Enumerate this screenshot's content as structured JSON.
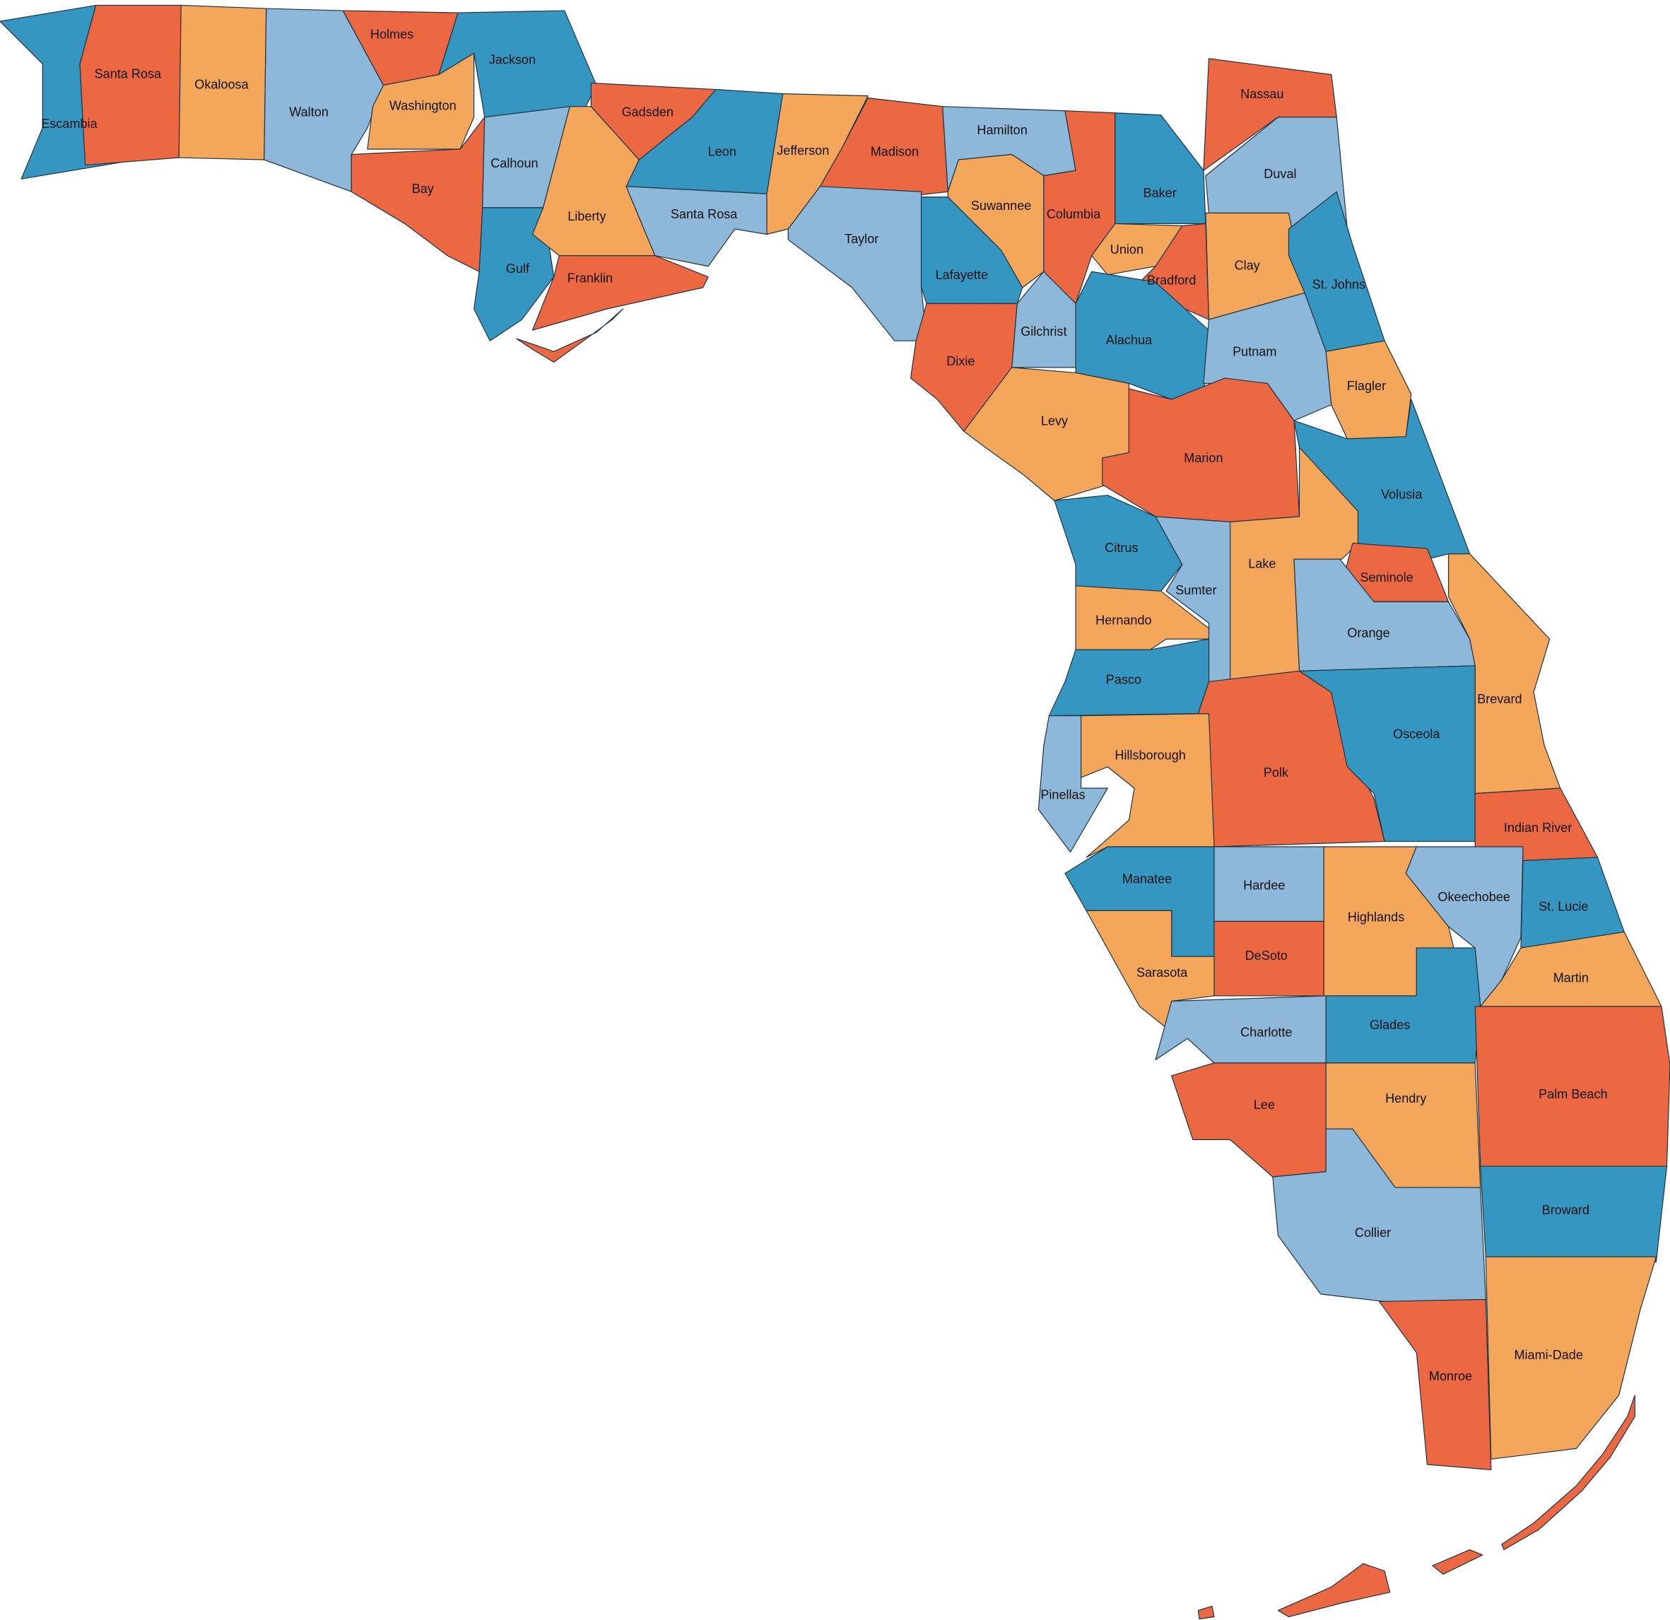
{
  "counties": [
    {
      "name": "Escambia",
      "color": "#3597c1"
    },
    {
      "name": "Santa Rosa",
      "color": "#ec6842"
    },
    {
      "name": "Okaloosa",
      "color": "#f4a65a"
    },
    {
      "name": "Walton",
      "color": "#8db8d9"
    },
    {
      "name": "Holmes",
      "color": "#ec6842"
    },
    {
      "name": "Jackson",
      "color": "#3597c1"
    },
    {
      "name": "Washington",
      "color": "#f4a65a"
    },
    {
      "name": "Bay",
      "color": "#ec6842"
    },
    {
      "name": "Calhoun",
      "color": "#8db8d9"
    },
    {
      "name": "Gulf",
      "color": "#3597c1"
    },
    {
      "name": "Liberty",
      "color": "#f4a65a"
    },
    {
      "name": "Franklin",
      "color": "#ec6842"
    },
    {
      "name": "Gadsden",
      "color": "#ec6842"
    },
    {
      "name": "Leon",
      "color": "#3597c1"
    },
    {
      "name": "Santa Rosa",
      "color": "#8db8d9"
    },
    {
      "name": "Jefferson",
      "color": "#f4a65a"
    },
    {
      "name": "Madison",
      "color": "#ec6842"
    },
    {
      "name": "Taylor",
      "color": "#8db8d9"
    },
    {
      "name": "Hamilton",
      "color": "#8db8d9"
    },
    {
      "name": "Suwannee",
      "color": "#f4a65a"
    },
    {
      "name": "Lafayette",
      "color": "#3597c1"
    },
    {
      "name": "Columbia",
      "color": "#ec6842"
    },
    {
      "name": "Baker",
      "color": "#3597c1"
    },
    {
      "name": "Nassau",
      "color": "#ec6842"
    },
    {
      "name": "Duval",
      "color": "#8db8d9"
    },
    {
      "name": "Union",
      "color": "#f4a65a"
    },
    {
      "name": "Bradford",
      "color": "#ec6842"
    },
    {
      "name": "Clay",
      "color": "#f4a65a"
    },
    {
      "name": "St. Johns",
      "color": "#3597c1"
    },
    {
      "name": "Gilchrist",
      "color": "#8db8d9"
    },
    {
      "name": "Dixie",
      "color": "#ec6842"
    },
    {
      "name": "Alachua",
      "color": "#3597c1"
    },
    {
      "name": "Putnam",
      "color": "#8db8d9"
    },
    {
      "name": "Flagler",
      "color": "#f4a65a"
    },
    {
      "name": "Levy",
      "color": "#f4a65a"
    },
    {
      "name": "Marion",
      "color": "#ec6842"
    },
    {
      "name": "Volusia",
      "color": "#3597c1"
    },
    {
      "name": "Citrus",
      "color": "#3597c1"
    },
    {
      "name": "Sumter",
      "color": "#8db8d9"
    },
    {
      "name": "Lake",
      "color": "#f4a65a"
    },
    {
      "name": "Seminole",
      "color": "#ec6842"
    },
    {
      "name": "Hernando",
      "color": "#f4a65a"
    },
    {
      "name": "Orange",
      "color": "#8db8d9"
    },
    {
      "name": "Brevard",
      "color": "#f4a65a"
    },
    {
      "name": "Pasco",
      "color": "#3597c1"
    },
    {
      "name": "Polk",
      "color": "#ec6842"
    },
    {
      "name": "Osceola",
      "color": "#3597c1"
    },
    {
      "name": "Pinellas",
      "color": "#8db8d9"
    },
    {
      "name": "Hillsborough",
      "color": "#f4a65a"
    },
    {
      "name": "Indian River",
      "color": "#ec6842"
    },
    {
      "name": "Manatee",
      "color": "#3597c1"
    },
    {
      "name": "Hardee",
      "color": "#8db8d9"
    },
    {
      "name": "Highlands",
      "color": "#f4a65a"
    },
    {
      "name": "Okeechobee",
      "color": "#8db8d9"
    },
    {
      "name": "St. Lucie",
      "color": "#3597c1"
    },
    {
      "name": "DeSoto",
      "color": "#ec6842"
    },
    {
      "name": "Sarasota",
      "color": "#f4a65a"
    },
    {
      "name": "Martin",
      "color": "#f4a65a"
    },
    {
      "name": "Charlotte",
      "color": "#8db8d9"
    },
    {
      "name": "Glades",
      "color": "#3597c1"
    },
    {
      "name": "Lee",
      "color": "#ec6842"
    },
    {
      "name": "Hendry",
      "color": "#f4a65a"
    },
    {
      "name": "Palm Beach",
      "color": "#ec6842"
    },
    {
      "name": "Collier",
      "color": "#8db8d9"
    },
    {
      "name": "Broward",
      "color": "#3597c1"
    },
    {
      "name": "Monroe",
      "color": "#ec6842"
    },
    {
      "name": "Miami-Dade",
      "color": "#f4a65a"
    }
  ]
}
